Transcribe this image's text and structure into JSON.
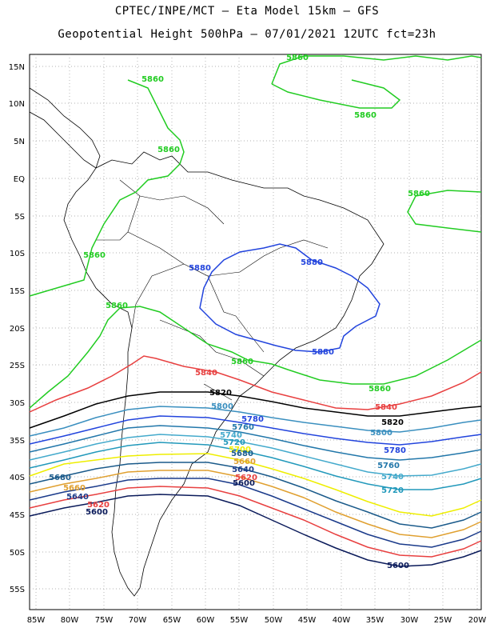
{
  "title": {
    "line1": "CPTEC/INPE/MCT –  Eta Model 15km – GFS",
    "line2": "Geopotential Height 500hPa – 07/01/2021 12UTC fct=23h"
  },
  "axes": {
    "lat_ticks": [
      "15N",
      "10N",
      "5N",
      "EQ",
      "5S",
      "10S",
      "15S",
      "20S",
      "25S",
      "30S",
      "35S",
      "40S",
      "45S",
      "50S",
      "55S"
    ],
    "lon_ticks": [
      "85W",
      "80W",
      "75W",
      "70W",
      "65W",
      "60W",
      "55W",
      "50W",
      "45W",
      "40W",
      "35W",
      "30W",
      "25W",
      "20W"
    ]
  },
  "contour_labels": [
    {
      "text": "5860",
      "color": "#22cc22"
    },
    {
      "text": "5860",
      "color": "#22cc22"
    },
    {
      "text": "5860",
      "color": "#22cc22"
    },
    {
      "text": "5860",
      "color": "#22cc22"
    },
    {
      "text": "5860",
      "color": "#22cc22"
    },
    {
      "text": "5860",
      "color": "#22cc22"
    },
    {
      "text": "5860",
      "color": "#22cc22"
    },
    {
      "text": "5860",
      "color": "#22cc22"
    },
    {
      "text": "5860",
      "color": "#22cc22"
    },
    {
      "text": "5880",
      "color": "#2244dd"
    },
    {
      "text": "5880",
      "color": "#2244dd"
    },
    {
      "text": "5880",
      "color": "#2244dd"
    },
    {
      "text": "5840",
      "color": "#e84040"
    },
    {
      "text": "5840",
      "color": "#e84040"
    },
    {
      "text": "5820",
      "color": "#000000"
    },
    {
      "text": "5820",
      "color": "#000000"
    },
    {
      "text": "5800",
      "color": "#3a8fbf"
    },
    {
      "text": "5800",
      "color": "#3a8fbf"
    },
    {
      "text": "5780",
      "color": "#2244dd"
    },
    {
      "text": "5780",
      "color": "#2244dd"
    },
    {
      "text": "5760",
      "color": "#2277aa"
    },
    {
      "text": "5760",
      "color": "#2277aa"
    },
    {
      "text": "5740",
      "color": "#44aacc"
    },
    {
      "text": "5740",
      "color": "#44aacc"
    },
    {
      "text": "5720",
      "color": "#2299bb"
    },
    {
      "text": "5720",
      "color": "#2299bb"
    },
    {
      "text": "5700",
      "color": "#eeee00"
    },
    {
      "text": "5680",
      "color": "#1a5a8a"
    },
    {
      "text": "5680",
      "color": "#1a5a8a"
    },
    {
      "text": "5660",
      "color": "#e0a030"
    },
    {
      "text": "5660",
      "color": "#e0a030"
    },
    {
      "text": "5640",
      "color": "#1a3a8a"
    },
    {
      "text": "5640",
      "color": "#1a3a8a"
    },
    {
      "text": "5620",
      "color": "#e84040"
    },
    {
      "text": "5620",
      "color": "#e84040"
    },
    {
      "text": "5600",
      "color": "#0a1a5a"
    },
    {
      "text": "5600",
      "color": "#0a1a5a"
    },
    {
      "text": "5600",
      "color": "#0a1a5a"
    }
  ],
  "colors": {
    "c5860": "#22cc22",
    "c5880": "#2244dd",
    "c5840": "#e84040",
    "c5820": "#000000",
    "c5800": "#3a8fbf",
    "c5780": "#2244dd",
    "c5760": "#2277aa",
    "c5740": "#44aacc",
    "c5720": "#2299bb",
    "c5700": "#eeee00",
    "c5680": "#1a5a8a",
    "c5660": "#e0a030",
    "c5640": "#1a3a8a",
    "c5620": "#e84040",
    "c5600": "#0a1a5a"
  }
}
